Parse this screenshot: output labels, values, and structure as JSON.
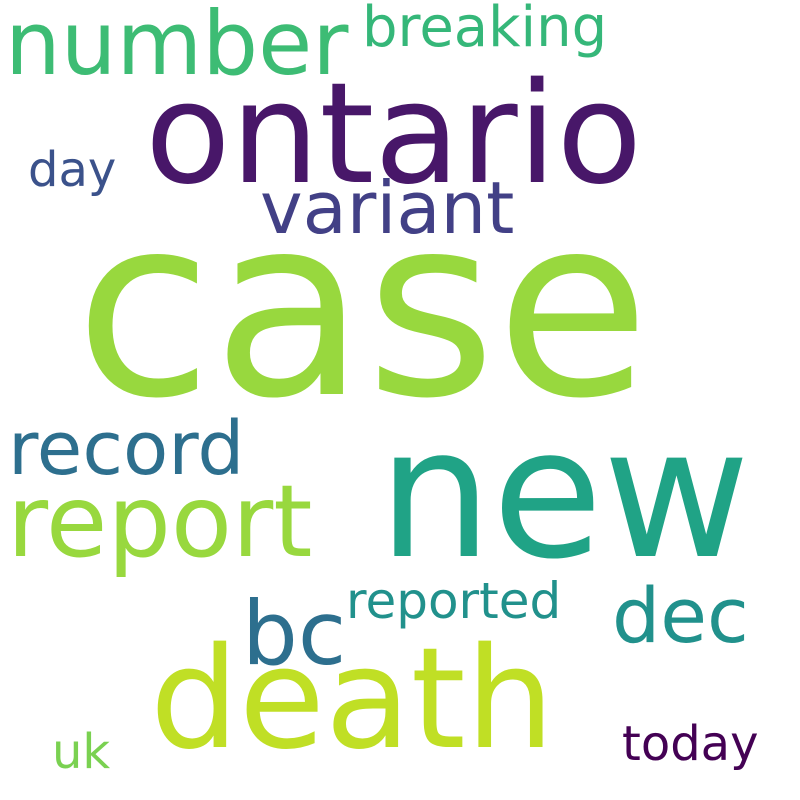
{
  "words": [
    {
      "id": "case",
      "text": "case",
      "color": "#98d83e"
    },
    {
      "id": "new",
      "text": "new",
      "color": "#20a386"
    },
    {
      "id": "ontario",
      "text": "ontario",
      "color": "#481769"
    },
    {
      "id": "death",
      "text": "death",
      "color": "#c0df25"
    },
    {
      "id": "report",
      "text": "report",
      "color": "#98d83e"
    },
    {
      "id": "number",
      "text": "number",
      "color": "#3dbc74"
    },
    {
      "id": "variant",
      "text": "variant",
      "color": "#424086"
    },
    {
      "id": "record",
      "text": "record",
      "color": "#2d6f8e"
    },
    {
      "id": "bc",
      "text": "bc",
      "color": "#2d6f8e"
    },
    {
      "id": "dec",
      "text": "dec",
      "color": "#21918c"
    },
    {
      "id": "breaking",
      "text": "breaking",
      "color": "#35b779"
    },
    {
      "id": "reported",
      "text": "reported",
      "color": "#21918c"
    },
    {
      "id": "day",
      "text": "day",
      "color": "#3b528b"
    },
    {
      "id": "today",
      "text": "today",
      "color": "#440154"
    },
    {
      "id": "uk",
      "text": "uk",
      "color": "#7ad151"
    }
  ]
}
